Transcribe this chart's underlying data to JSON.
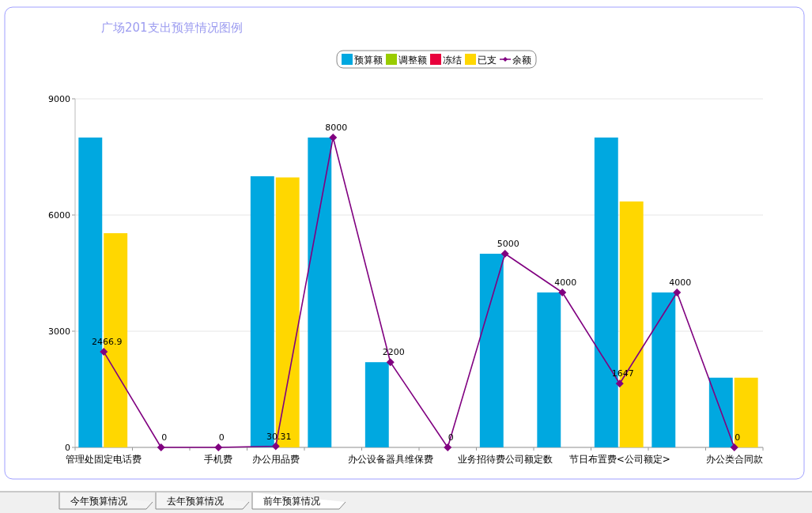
{
  "chart_data": {
    "type": "bar",
    "title": "广场201支出预算情况图例",
    "categories": [
      "管理处固定电话费",
      null,
      "手机费",
      "办公用品费",
      null,
      "办公设备器具维保费",
      null,
      "业务招待费公司额定数",
      null,
      "节日布置费<公司额定>",
      null,
      "办公类合同款"
    ],
    "series": [
      {
        "name": "预算额",
        "color": "#00a8e0",
        "values": [
          8000,
          0,
          0,
          7000,
          8000,
          2200,
          0,
          5000,
          4000,
          8000,
          4000,
          1800
        ]
      },
      {
        "name": "调整额",
        "color": "#99cc00",
        "values": [
          0,
          0,
          0,
          0,
          0,
          0,
          0,
          0,
          0,
          0,
          0,
          0
        ]
      },
      {
        "name": "冻结",
        "color": "#e8003c",
        "values": [
          0,
          0,
          0,
          0,
          0,
          0,
          0,
          0,
          0,
          0,
          0,
          0
        ]
      },
      {
        "name": "已支",
        "color": "#ffd700",
        "values": [
          5530,
          0,
          0,
          6970,
          0,
          0,
          0,
          0,
          0,
          6350,
          0,
          1800
        ]
      },
      {
        "name": "余额",
        "type": "line",
        "color": "#800080",
        "marker": "diamond",
        "values": [
          2466.9,
          0,
          0,
          30.31,
          8000,
          2200,
          0,
          5000,
          4000,
          1647,
          4000,
          0
        ],
        "value_labels": [
          "2466.9",
          "0",
          "0",
          "30.31",
          "8000",
          "2200",
          "0",
          "5000",
          "4000",
          "1647",
          "4000",
          "0"
        ]
      }
    ],
    "ylim": [
      0,
      9000
    ],
    "yticks": [
      0,
      3000,
      6000,
      9000
    ],
    "grid": "y",
    "legend": "top",
    "annotations": [
      "今年预算情况",
      "去年预算情况",
      "前年预算情况"
    ]
  }
}
